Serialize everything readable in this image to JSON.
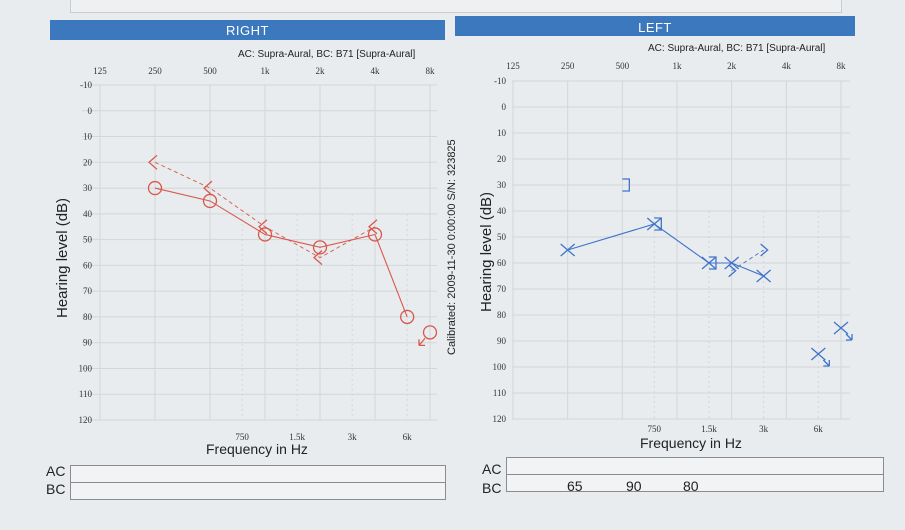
{
  "colors": {
    "header": "#3c78bd",
    "right_ear": "#d8584c",
    "left_ear": "#3f74c9",
    "grid": "#d2d6d9"
  },
  "chart_data": [
    {
      "type": "line",
      "title": "RIGHT",
      "subtitle": "AC: Supra-Aural, BC: B71 [Supra-Aural]",
      "xlabel": "Frequency in Hz",
      "ylabel": "Hearing level (dB)",
      "xscale": "log",
      "x_ticks_top": [
        {
          "f": 125,
          "label": "125"
        },
        {
          "f": 250,
          "label": "250"
        },
        {
          "f": 500,
          "label": "500"
        },
        {
          "f": 1000,
          "label": "1k"
        },
        {
          "f": 2000,
          "label": "2k"
        },
        {
          "f": 4000,
          "label": "4k"
        },
        {
          "f": 8000,
          "label": "8k"
        }
      ],
      "x_ticks_bottom": [
        {
          "f": 750,
          "label": "750"
        },
        {
          "f": 1500,
          "label": "1.5k"
        },
        {
          "f": 3000,
          "label": "3k"
        },
        {
          "f": 6000,
          "label": "6k"
        }
      ],
      "y_ticks": [
        -10,
        0,
        10,
        20,
        30,
        40,
        50,
        60,
        70,
        80,
        90,
        100,
        110,
        120
      ],
      "ylim": [
        -10,
        120
      ],
      "y_inverted": true,
      "grid": true,
      "series": [
        {
          "symbol": "circle",
          "line": "solid",
          "color": "#d8584c",
          "points": [
            {
              "f": 250,
              "db": 30
            },
            {
              "f": 500,
              "db": 35
            },
            {
              "f": 1000,
              "db": 48
            },
            {
              "f": 2000,
              "db": 53
            },
            {
              "f": 4000,
              "db": 48
            },
            {
              "f": 6000,
              "db": 80
            }
          ]
        },
        {
          "symbol": "circle-no-response",
          "line": "none",
          "color": "#d8584c",
          "points": [
            {
              "f": 8000,
              "db": 86
            }
          ]
        },
        {
          "symbol": "bc-unmasked-right",
          "line": "dashed",
          "color": "#d8584c",
          "points": [
            {
              "f": 250,
              "db": 20
            },
            {
              "f": 500,
              "db": 30
            },
            {
              "f": 1000,
              "db": 45
            },
            {
              "f": 2000,
              "db": 57
            },
            {
              "f": 4000,
              "db": 45
            }
          ]
        }
      ]
    },
    {
      "type": "line",
      "title": "LEFT",
      "subtitle": "AC: Supra-Aural, BC: B71 [Supra-Aural]",
      "xlabel": "Frequency in Hz",
      "ylabel": "Hearing level (dB)",
      "xscale": "log",
      "x_ticks_top": [
        {
          "f": 125,
          "label": "125"
        },
        {
          "f": 250,
          "label": "250"
        },
        {
          "f": 500,
          "label": "500"
        },
        {
          "f": 1000,
          "label": "1k"
        },
        {
          "f": 2000,
          "label": "2k"
        },
        {
          "f": 4000,
          "label": "4k"
        },
        {
          "f": 8000,
          "label": "8k"
        }
      ],
      "x_ticks_bottom": [
        {
          "f": 750,
          "label": "750"
        },
        {
          "f": 1500,
          "label": "1.5k"
        },
        {
          "f": 3000,
          "label": "3k"
        },
        {
          "f": 6000,
          "label": "6k"
        }
      ],
      "y_ticks": [
        -10,
        0,
        10,
        20,
        30,
        40,
        50,
        60,
        70,
        80,
        90,
        100,
        110,
        120
      ],
      "ylim": [
        -10,
        120
      ],
      "y_inverted": true,
      "grid": true,
      "series": [
        {
          "symbol": "x",
          "line": "solid",
          "color": "#3f74c9",
          "points": [
            {
              "f": 250,
              "db": 55
            },
            {
              "f": 750,
              "db": 45
            },
            {
              "f": 1500,
              "db": 60
            },
            {
              "f": 2000,
              "db": 60
            },
            {
              "f": 3000,
              "db": 65
            }
          ]
        },
        {
          "symbol": "x-no-response",
          "line": "none",
          "color": "#3f74c9",
          "points": [
            {
              "f": 6000,
              "db": 95
            },
            {
              "f": 8000,
              "db": 85
            }
          ]
        },
        {
          "symbol": "bc-masked-left",
          "line": "none",
          "color": "#3f74c9",
          "points": [
            {
              "f": 500,
              "db": 30
            },
            {
              "f": 750,
              "db": 45
            },
            {
              "f": 1500,
              "db": 60
            }
          ]
        },
        {
          "symbol": "bc-unmasked-left",
          "line": "dashed",
          "color": "#3f74c9",
          "points": [
            {
              "f": 2000,
              "db": 63
            },
            {
              "f": 3000,
              "db": 55
            }
          ]
        }
      ]
    }
  ],
  "calibration": "Calibrated: 2009-11-30 0:00:00 S/N: 323825",
  "summary": {
    "right": {
      "ac_label": "AC",
      "bc_label": "BC",
      "ac_values": [],
      "bc_values": []
    },
    "left": {
      "ac_label": "AC",
      "bc_label": "BC",
      "ac_values": [],
      "bc_values": [
        "65",
        "90",
        "80"
      ]
    }
  }
}
